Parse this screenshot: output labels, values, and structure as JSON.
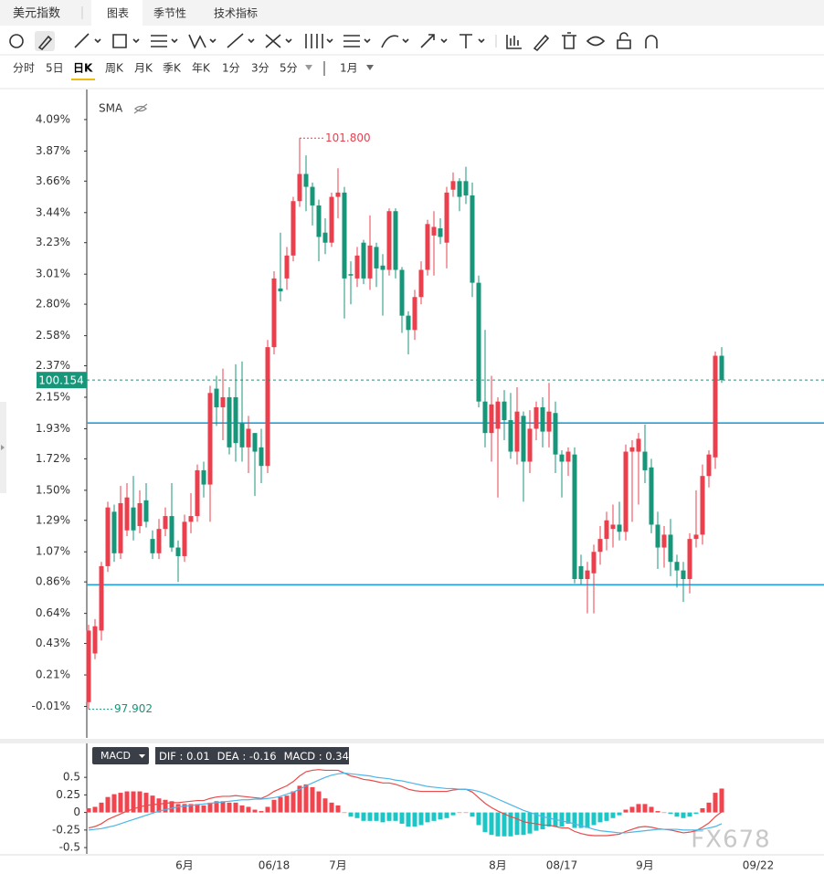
{
  "header": {
    "title": "美元指数",
    "tabs": [
      "图表",
      "季节性",
      "技术指标"
    ],
    "periods": [
      "分时",
      "5日",
      "日K",
      "周K",
      "月K",
      "季K",
      "年K",
      "1分",
      "3分",
      "5分"
    ],
    "range": "1月"
  },
  "chart_data": [
    {
      "type": "candlestick",
      "indicator": "SMA",
      "categories": [
        null,
        null,
        null,
        null,
        null,
        null,
        null,
        null,
        null,
        null,
        null,
        null,
        null,
        null,
        null,
        "6月",
        null,
        null,
        null,
        null,
        null,
        null,
        null,
        null,
        null,
        null,
        null,
        null,
        null,
        "06/18",
        null,
        null,
        null,
        null,
        null,
        null,
        null,
        null,
        null,
        "7月",
        null,
        null,
        null,
        null,
        null,
        null,
        null,
        null,
        null,
        null,
        null,
        null,
        null,
        null,
        null,
        null,
        null,
        null,
        null,
        null,
        null,
        null,
        null,
        null,
        "8月",
        null,
        null,
        null,
        null,
        null,
        null,
        null,
        null,
        null,
        "08/17",
        null,
        null,
        null,
        null,
        null,
        null,
        null,
        null,
        null,
        null,
        null,
        null,
        "9月",
        null,
        null,
        null,
        null,
        null,
        null,
        null,
        null,
        null,
        null,
        null,
        null
      ],
      "open": [
        0.02,
        0.36,
        0.52,
        0.97,
        1.35,
        1.06,
        1.22,
        1.38,
        1.25,
        1.43,
        1.16,
        1.06,
        1.23,
        1.32,
        1.1,
        1.04,
        1.28,
        1.32,
        1.64,
        1.54,
        2.21,
        2.08,
        2.15,
        2.15,
        1.97,
        1.8,
        1.9,
        1.8,
        1.67,
        2.5,
        2.91,
        2.98,
        3.14,
        3.52,
        3.71,
        3.62,
        3.49,
        3.3,
        3.23,
        3.55,
        3.58,
        3.01,
        2.98,
        3.23,
        2.98,
        3.2,
        3.07,
        3.04,
        3.45,
        3.04,
        2.72,
        2.62,
        2.85,
        3.04,
        3.28,
        3.33,
        3.23,
        3.6,
        3.66,
        3.66,
        3.56,
        2.95,
        2.12,
        1.9,
        1.93,
        2.12,
        1.99,
        1.77,
        2.02,
        1.7,
        1.93,
        2.08,
        1.91,
        2.04,
        1.75,
        1.7,
        1.75,
        0.97,
        0.88,
        0.92,
        1.07,
        1.16,
        1.23,
        1.26,
        1.21,
        1.77,
        1.77,
        1.77,
        1.66,
        1.26,
        1.1,
        1.19,
        1.0,
        0.94,
        0.88,
        1.16,
        1.19,
        1.6,
        1.73,
        2.44
      ],
      "close": [
        0.52,
        0.55,
        0.97,
        1.38,
        1.06,
        1.41,
        1.45,
        1.22,
        1.41,
        1.28,
        1.06,
        1.23,
        1.32,
        1.1,
        1.04,
        1.28,
        1.32,
        1.64,
        1.54,
        2.18,
        2.08,
        2.15,
        1.8,
        1.83,
        1.8,
        1.93,
        1.77,
        1.67,
        2.5,
        2.98,
        2.89,
        3.14,
        3.52,
        3.71,
        3.62,
        3.49,
        3.27,
        3.23,
        3.55,
        3.58,
        2.98,
        3.0,
        3.14,
        2.98,
        3.21,
        3.05,
        3.04,
        3.45,
        3.04,
        2.72,
        2.62,
        2.85,
        3.04,
        3.36,
        3.34,
        3.27,
        3.58,
        3.66,
        3.55,
        3.56,
        2.95,
        2.12,
        1.9,
        2.1,
        2.12,
        1.99,
        1.77,
        2.05,
        1.7,
        1.93,
        2.08,
        1.91,
        2.05,
        1.75,
        1.7,
        1.77,
        0.88,
        0.88,
        0.94,
        1.07,
        1.16,
        1.29,
        1.26,
        1.21,
        1.77,
        1.8,
        1.86,
        1.64,
        1.26,
        1.1,
        1.19,
        1.0,
        0.94,
        0.88,
        1.16,
        1.19,
        1.6,
        1.75,
        2.44,
        2.27
      ],
      "high": [
        0.56,
        0.6,
        1.0,
        1.42,
        1.4,
        1.53,
        1.55,
        1.6,
        1.5,
        1.55,
        1.22,
        1.3,
        1.38,
        1.55,
        1.15,
        1.33,
        1.48,
        1.68,
        1.7,
        2.23,
        2.3,
        2.35,
        2.22,
        2.38,
        2.4,
        2.02,
        1.9,
        1.93,
        2.55,
        3.03,
        3.3,
        3.2,
        3.55,
        3.96,
        3.84,
        3.65,
        3.53,
        3.4,
        3.58,
        3.75,
        3.62,
        3.1,
        3.2,
        3.25,
        3.42,
        3.23,
        3.15,
        3.47,
        3.47,
        3.06,
        2.75,
        2.9,
        3.1,
        3.39,
        3.45,
        3.4,
        3.62,
        3.72,
        3.68,
        3.76,
        3.65,
        3.0,
        2.62,
        2.3,
        2.15,
        2.2,
        2.18,
        2.22,
        2.05,
        2.06,
        2.12,
        2.15,
        2.25,
        2.12,
        1.78,
        1.8,
        1.8,
        1.05,
        1.0,
        1.12,
        1.25,
        1.35,
        1.4,
        1.42,
        1.82,
        1.85,
        1.9,
        1.96,
        1.72,
        1.35,
        1.25,
        1.3,
        1.05,
        1.0,
        1.2,
        1.5,
        1.68,
        1.78,
        2.47,
        2.5
      ],
      "low": [
        -0.03,
        0.32,
        0.45,
        0.93,
        1.0,
        1.02,
        1.18,
        1.15,
        1.2,
        1.24,
        1.02,
        1.02,
        1.18,
        1.07,
        0.86,
        1.0,
        1.2,
        1.28,
        1.45,
        1.28,
        1.95,
        1.85,
        1.75,
        1.7,
        1.7,
        1.62,
        1.46,
        1.55,
        1.62,
        2.45,
        2.82,
        2.9,
        3.1,
        3.48,
        3.45,
        3.35,
        3.1,
        3.15,
        3.2,
        3.4,
        2.7,
        2.8,
        2.92,
        2.94,
        2.9,
        2.92,
        2.72,
        3.0,
        2.98,
        2.6,
        2.45,
        2.55,
        2.8,
        3.0,
        3.0,
        3.22,
        3.05,
        3.55,
        3.45,
        3.5,
        2.85,
        2.08,
        1.8,
        1.7,
        1.45,
        1.85,
        1.72,
        1.68,
        1.42,
        1.62,
        1.85,
        1.8,
        1.8,
        1.62,
        1.45,
        1.6,
        0.85,
        0.84,
        0.64,
        0.64,
        0.98,
        1.08,
        1.1,
        1.15,
        1.15,
        1.28,
        1.4,
        1.55,
        1.2,
        0.95,
        0.96,
        0.9,
        0.82,
        0.72,
        0.78,
        1.1,
        1.12,
        1.52,
        1.65,
        2.25
      ],
      "up_color": "#eb3f4e",
      "down_color": "#17967a",
      "ylim": [
        -0.23,
        4.3
      ],
      "yticks": [
        {
          "value": 4.09,
          "label": "4.09%"
        },
        {
          "value": 3.87,
          "label": "3.87%"
        },
        {
          "value": 3.66,
          "label": "3.66%"
        },
        {
          "value": 3.44,
          "label": "3.44%"
        },
        {
          "value": 3.23,
          "label": "3.23%"
        },
        {
          "value": 3.01,
          "label": "3.01%"
        },
        {
          "value": 2.8,
          "label": "2.80%"
        },
        {
          "value": 2.58,
          "label": "2.58%"
        },
        {
          "value": 2.37,
          "label": "2.37%"
        },
        {
          "value": 2.15,
          "label": "2.15%"
        },
        {
          "value": 1.93,
          "label": "1.93%"
        },
        {
          "value": 1.72,
          "label": "1.72%"
        },
        {
          "value": 1.5,
          "label": "1.50%"
        },
        {
          "value": 1.29,
          "label": "1.29%"
        },
        {
          "value": 1.07,
          "label": "1.07%"
        },
        {
          "value": 0.86,
          "label": "0.86%"
        },
        {
          "value": 0.64,
          "label": "0.64%"
        },
        {
          "value": 0.43,
          "label": "0.43%"
        },
        {
          "value": 0.21,
          "label": "0.21%"
        },
        {
          "value": -0.01,
          "label": "-0.01%"
        }
      ],
      "hlines": [
        1.97,
        0.84
      ],
      "hline_color": "#1ea1de",
      "high_label": "101.800",
      "low_label": "97.902",
      "last_label": "100.154",
      "extra_xlabel": "09/22",
      "watermark": "FX678"
    },
    {
      "type": "macd",
      "title": "MACD",
      "ylim": [
        -0.59,
        0.97
      ],
      "yticks": [
        0.5,
        0.25,
        0,
        -0.25,
        -0.5
      ],
      "series": [
        {
          "name": "DIF",
          "color": "#e84c4c",
          "values": [
            -0.22,
            -0.2,
            -0.16,
            -0.1,
            -0.06,
            -0.02,
            0.02,
            0.05,
            0.08,
            0.1,
            0.11,
            0.12,
            0.13,
            0.14,
            0.14,
            0.15,
            0.16,
            0.17,
            0.17,
            0.2,
            0.22,
            0.23,
            0.23,
            0.24,
            0.23,
            0.22,
            0.21,
            0.2,
            0.24,
            0.3,
            0.34,
            0.38,
            0.44,
            0.52,
            0.58,
            0.6,
            0.61,
            0.6,
            0.6,
            0.6,
            0.56,
            0.52,
            0.5,
            0.47,
            0.46,
            0.44,
            0.42,
            0.42,
            0.4,
            0.37,
            0.33,
            0.31,
            0.3,
            0.3,
            0.3,
            0.3,
            0.3,
            0.32,
            0.33,
            0.33,
            0.29,
            0.21,
            0.13,
            0.07,
            0.02,
            -0.02,
            -0.06,
            -0.09,
            -0.13,
            -0.15,
            -0.16,
            -0.18,
            -0.18,
            -0.2,
            -0.22,
            -0.22,
            -0.27,
            -0.3,
            -0.32,
            -0.33,
            -0.33,
            -0.33,
            -0.32,
            -0.31,
            -0.27,
            -0.24,
            -0.21,
            -0.2,
            -0.21,
            -0.23,
            -0.24,
            -0.25,
            -0.27,
            -0.29,
            -0.28,
            -0.26,
            -0.21,
            -0.15,
            -0.06,
            0.01
          ]
        },
        {
          "name": "DEA",
          "color": "#4fb5e6",
          "values": [
            -0.25,
            -0.24,
            -0.23,
            -0.21,
            -0.19,
            -0.16,
            -0.13,
            -0.1,
            -0.07,
            -0.04,
            -0.01,
            0.02,
            0.04,
            0.06,
            0.08,
            0.09,
            0.1,
            0.11,
            0.12,
            0.13,
            0.14,
            0.15,
            0.16,
            0.17,
            0.18,
            0.18,
            0.19,
            0.19,
            0.2,
            0.21,
            0.23,
            0.26,
            0.29,
            0.33,
            0.38,
            0.42,
            0.46,
            0.5,
            0.53,
            0.55,
            0.56,
            0.55,
            0.54,
            0.53,
            0.52,
            0.5,
            0.49,
            0.48,
            0.46,
            0.45,
            0.43,
            0.41,
            0.39,
            0.37,
            0.36,
            0.35,
            0.34,
            0.34,
            0.33,
            0.33,
            0.32,
            0.3,
            0.27,
            0.23,
            0.19,
            0.15,
            0.11,
            0.07,
            0.03,
            0,
            -0.03,
            -0.06,
            -0.08,
            -0.1,
            -0.12,
            -0.14,
            -0.16,
            -0.19,
            -0.21,
            -0.24,
            -0.26,
            -0.27,
            -0.28,
            -0.29,
            -0.29,
            -0.28,
            -0.27,
            -0.26,
            -0.25,
            -0.24,
            -0.24,
            -0.24,
            -0.24,
            -0.25,
            -0.25,
            -0.25,
            -0.24,
            -0.22,
            -0.2,
            -0.16
          ]
        },
        {
          "name": "MACD",
          "up_color": "#f0454f",
          "down_color": "#1cc6c6",
          "values": [
            0.06,
            0.08,
            0.14,
            0.22,
            0.26,
            0.28,
            0.3,
            0.3,
            0.3,
            0.28,
            0.24,
            0.2,
            0.18,
            0.16,
            0.12,
            0.12,
            0.12,
            0.12,
            0.1,
            0.14,
            0.16,
            0.16,
            0.14,
            0.14,
            0.1,
            0.08,
            0.04,
            0.02,
            0.08,
            0.18,
            0.22,
            0.24,
            0.3,
            0.38,
            0.4,
            0.36,
            0.3,
            0.2,
            0.14,
            0.1,
            0,
            -0.06,
            -0.08,
            -0.12,
            -0.12,
            -0.12,
            -0.14,
            -0.12,
            -0.12,
            -0.16,
            -0.2,
            -0.2,
            -0.18,
            -0.14,
            -0.12,
            -0.1,
            -0.08,
            -0.04,
            0,
            0,
            -0.06,
            -0.18,
            -0.28,
            -0.32,
            -0.34,
            -0.34,
            -0.34,
            -0.32,
            -0.32,
            -0.3,
            -0.26,
            -0.24,
            -0.2,
            -0.2,
            -0.2,
            -0.16,
            -0.22,
            -0.22,
            -0.22,
            -0.18,
            -0.14,
            -0.12,
            -0.08,
            -0.04,
            0.04,
            0.08,
            0.12,
            0.12,
            0.08,
            0.02,
            0,
            -0.02,
            -0.06,
            -0.08,
            -0.06,
            -0.02,
            0.06,
            0.14,
            0.28,
            0.34
          ]
        }
      ]
    }
  ]
}
